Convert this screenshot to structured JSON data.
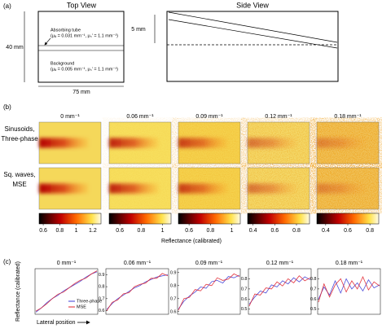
{
  "panel_a": {
    "label": "(a)",
    "top_view": {
      "title": "Top View",
      "height": "40 mm",
      "width": "75 mm",
      "tube_label": "Absorbing tube",
      "tube_params": "(μₐ = 0.031 mm⁻¹, μₛ′ = 1.1 mm⁻¹)",
      "background_label": "Background",
      "background_params": "(μₐ = 0.005 mm⁻¹, μₛ′ = 1.1 mm⁻¹)"
    },
    "side_view": {
      "title": "Side View",
      "depth": "5 mm"
    }
  },
  "panel_b": {
    "label": "(b)",
    "columns": [
      "0 mm⁻¹",
      "0.06 mm⁻¹",
      "0.09 mm⁻¹",
      "0.12 mm⁻¹",
      "0.18 mm⁻¹"
    ],
    "rows": [
      {
        "lines": [
          "Sinusoids,",
          "Three-phase"
        ]
      },
      {
        "lines": [
          "Sq. waves,",
          "MSE"
        ]
      }
    ],
    "colorbars": [
      {
        "lim": [
          0.55,
          1.3
        ],
        "ticks": [
          0.6,
          0.8,
          1,
          1.2
        ]
      },
      {
        "lim": [
          0.5,
          1.08
        ],
        "ticks": [
          0.6,
          0.8,
          1
        ]
      },
      {
        "lim": [
          0.5,
          1.08
        ],
        "ticks": [
          0.6,
          0.8,
          1
        ]
      },
      {
        "lim": [
          0.35,
          0.92
        ],
        "ticks": [
          0.4,
          0.6,
          0.8
        ]
      },
      {
        "lim": [
          0.32,
          0.88
        ],
        "ticks": [
          0.4,
          0.6,
          0.8
        ]
      }
    ],
    "colorbar_label": "Reflectance (calibrated)"
  },
  "panel_c": {
    "label": "(c)",
    "y_label": "Reflectance (calibrated)",
    "x_label": "Lateral position",
    "legend": [
      {
        "name": "Three-phase",
        "color": "#3b3bd6"
      },
      {
        "name": "MSE",
        "color": "#e0202a"
      }
    ],
    "plots": [
      {
        "title": "0 mm⁻¹",
        "ylim": [
          0.6,
          1.03
        ],
        "yticks": [],
        "series": [
          [
            0.62,
            0.66,
            0.71,
            0.75,
            0.78,
            0.82,
            0.85,
            0.88,
            0.91,
            0.95,
            0.98,
            1.0
          ],
          [
            0.63,
            0.66,
            0.7,
            0.75,
            0.79,
            0.81,
            0.85,
            0.89,
            0.92,
            0.94,
            0.98,
            1.01
          ]
        ]
      },
      {
        "title": "0.06 mm⁻¹",
        "ylim": [
          0.57,
          0.95
        ],
        "yticks": [
          0.6,
          0.7,
          0.8,
          0.9
        ],
        "series": [
          [
            0.61,
            0.66,
            0.7,
            0.73,
            0.76,
            0.79,
            0.81,
            0.84,
            0.86,
            0.88,
            0.89,
            0.9
          ],
          [
            0.6,
            0.67,
            0.69,
            0.74,
            0.75,
            0.8,
            0.82,
            0.83,
            0.87,
            0.87,
            0.91,
            0.89
          ]
        ]
      },
      {
        "title": "0.09 mm⁻¹",
        "ylim": [
          0.58,
          0.93
        ],
        "yticks": [
          0.6,
          0.7,
          0.8,
          0.9
        ],
        "series": [
          [
            0.62,
            0.68,
            0.72,
            0.75,
            0.79,
            0.78,
            0.83,
            0.84,
            0.82,
            0.87,
            0.86,
            0.88
          ],
          [
            0.61,
            0.7,
            0.71,
            0.77,
            0.76,
            0.81,
            0.8,
            0.86,
            0.84,
            0.85,
            0.89,
            0.87
          ]
        ]
      },
      {
        "title": "0.12 mm⁻¹",
        "ylim": [
          0.45,
          0.9
        ],
        "yticks": [
          0.5,
          0.6,
          0.7,
          0.8
        ],
        "series": [
          [
            0.55,
            0.62,
            0.68,
            0.66,
            0.74,
            0.72,
            0.78,
            0.75,
            0.81,
            0.77,
            0.82,
            0.79
          ],
          [
            0.53,
            0.65,
            0.64,
            0.71,
            0.7,
            0.77,
            0.73,
            0.8,
            0.76,
            0.83,
            0.78,
            0.81
          ]
        ]
      },
      {
        "title": "0.18 mm⁻¹",
        "ylim": [
          0.45,
          0.9
        ],
        "yticks": [
          0.5,
          0.6,
          0.7,
          0.8
        ],
        "series": [
          [
            0.6,
            0.72,
            0.64,
            0.78,
            0.66,
            0.8,
            0.7,
            0.76,
            0.68,
            0.79,
            0.71,
            0.74
          ],
          [
            0.57,
            0.75,
            0.62,
            0.74,
            0.8,
            0.67,
            0.78,
            0.7,
            0.82,
            0.69,
            0.77,
            0.73
          ]
        ]
      }
    ]
  }
}
